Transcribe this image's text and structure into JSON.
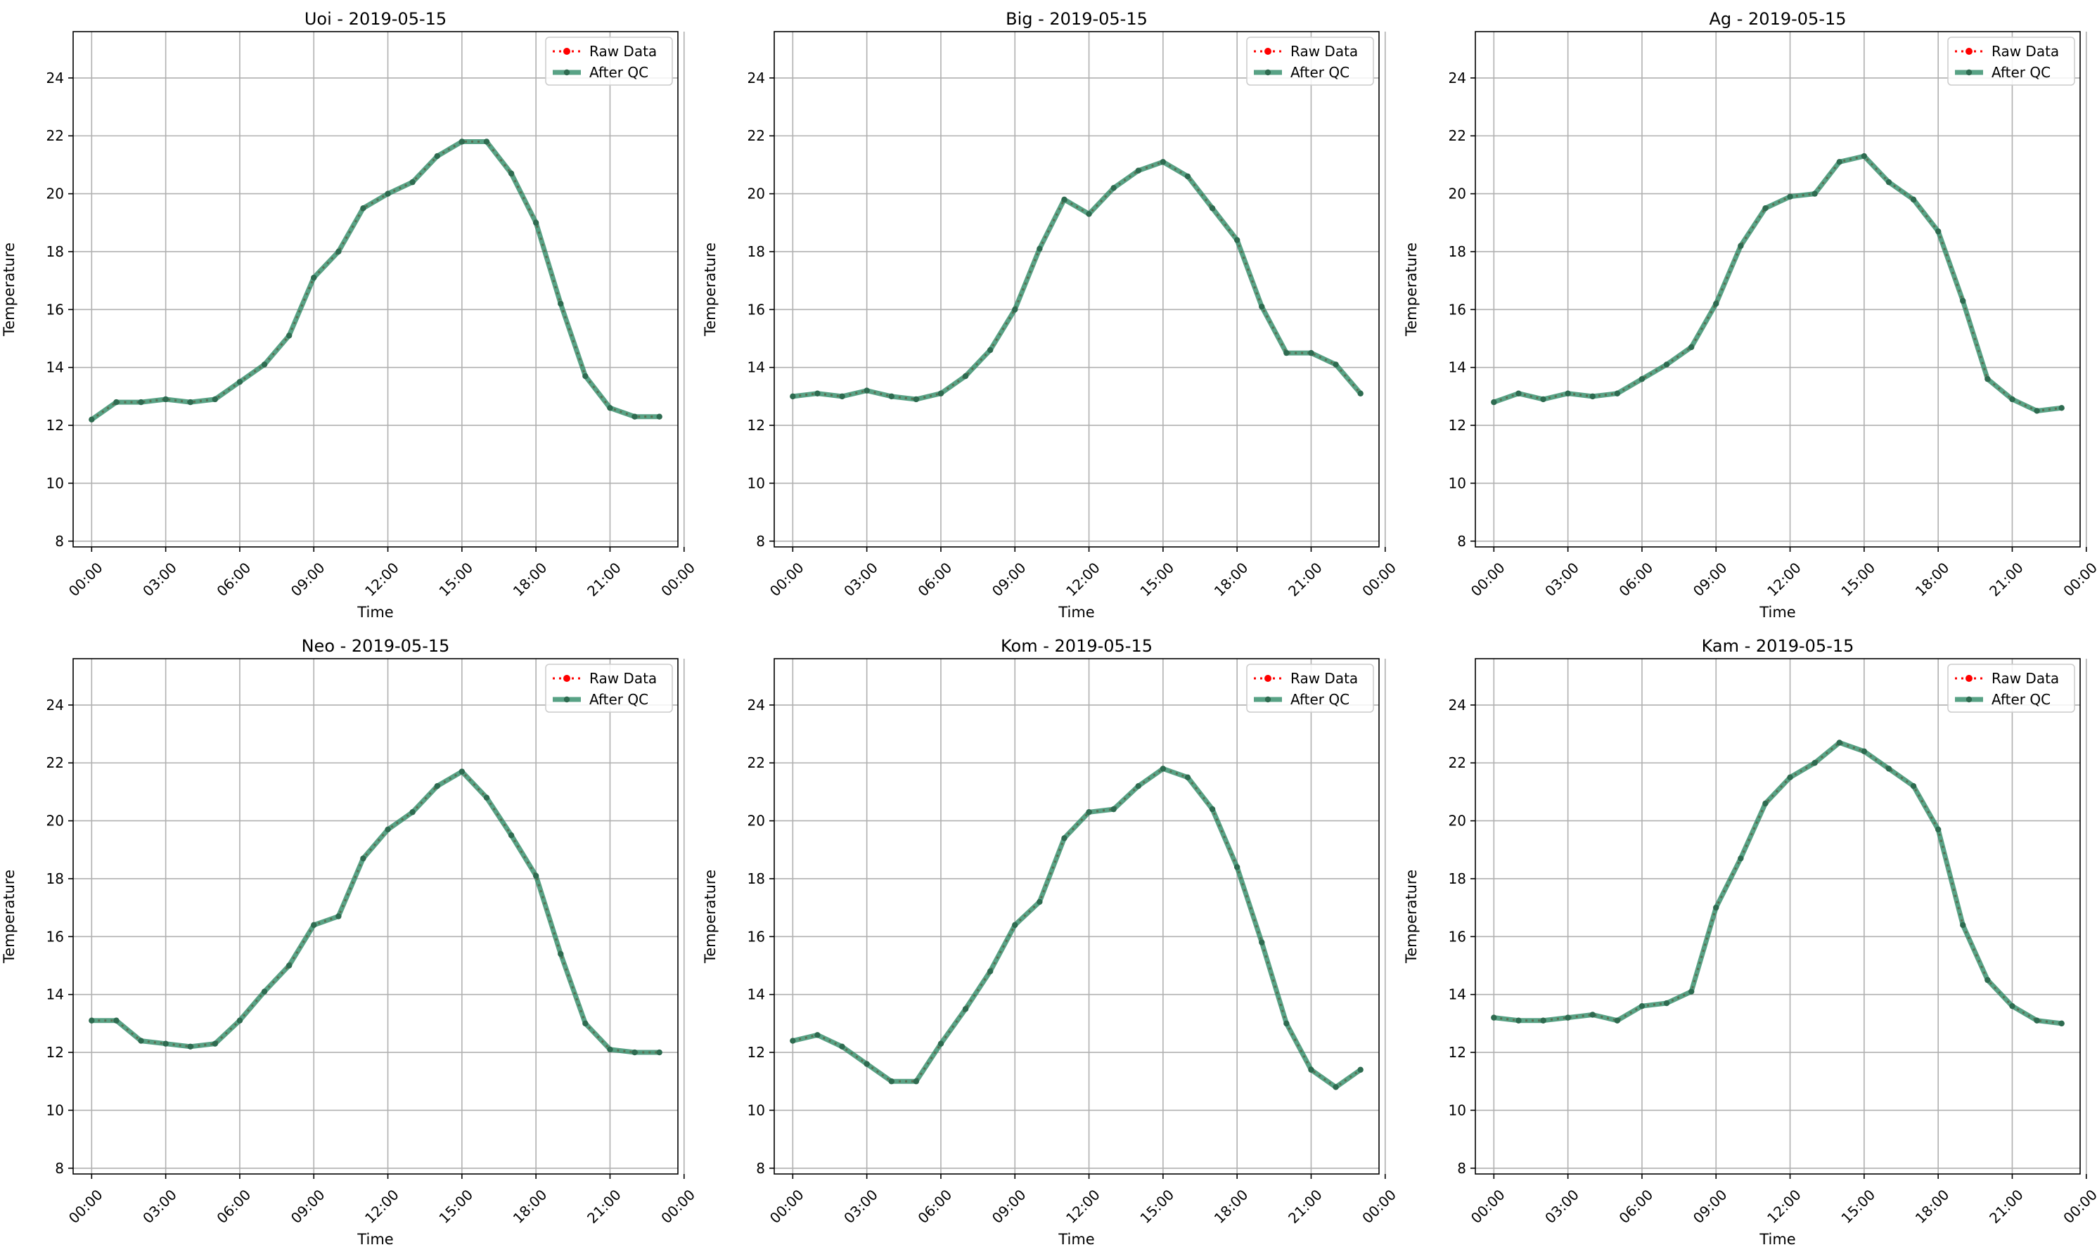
{
  "legend_labels": {
    "raw": "Raw Data",
    "qc": "After QC"
  },
  "colors": {
    "raw": "#ff0000",
    "qc": "#2e8b66",
    "marker": "#2e6b50",
    "grid": "#b0b0b0"
  },
  "chart_data": [
    {
      "type": "line",
      "title": "Uoi - 2019-05-15",
      "xlabel": "Time",
      "ylabel": "Temperature",
      "ylim": [
        7.8,
        25.6
      ],
      "xlim": [
        -0.75,
        23.75
      ],
      "xticks": [
        0,
        3,
        6,
        9,
        12,
        15,
        18,
        21,
        24
      ],
      "xtick_labels": [
        "00:00",
        "03:00",
        "06:00",
        "09:00",
        "12:00",
        "15:00",
        "18:00",
        "21:00",
        "00:00"
      ],
      "yticks": [
        8,
        10,
        12,
        14,
        16,
        18,
        20,
        22,
        24
      ],
      "grid": true,
      "legend": "top-right",
      "x": [
        0,
        1,
        2,
        3,
        4,
        5,
        6,
        7,
        8,
        9,
        10,
        11,
        12,
        13,
        14,
        15,
        16,
        17,
        18,
        19,
        20,
        21,
        22,
        23
      ],
      "series": [
        {
          "name": "Raw Data",
          "values": [
            12.2,
            12.8,
            12.8,
            12.9,
            12.8,
            12.9,
            13.5,
            14.1,
            15.1,
            17.1,
            18.0,
            19.5,
            20.0,
            20.4,
            21.3,
            21.8,
            21.8,
            20.7,
            19.0,
            16.2,
            13.7,
            12.6,
            12.3,
            12.3
          ]
        },
        {
          "name": "After QC",
          "values": [
            12.2,
            12.8,
            12.8,
            12.9,
            12.8,
            12.9,
            13.5,
            14.1,
            15.1,
            17.1,
            18.0,
            19.5,
            20.0,
            20.4,
            21.3,
            21.8,
            21.8,
            20.7,
            19.0,
            16.2,
            13.7,
            12.6,
            12.3,
            12.3
          ]
        }
      ]
    },
    {
      "type": "line",
      "title": "Big - 2019-05-15",
      "xlabel": "Time",
      "ylabel": "Temperature",
      "ylim": [
        7.8,
        25.6
      ],
      "xlim": [
        -0.75,
        23.75
      ],
      "xticks": [
        0,
        3,
        6,
        9,
        12,
        15,
        18,
        21,
        24
      ],
      "xtick_labels": [
        "00:00",
        "03:00",
        "06:00",
        "09:00",
        "12:00",
        "15:00",
        "18:00",
        "21:00",
        "00:00"
      ],
      "yticks": [
        8,
        10,
        12,
        14,
        16,
        18,
        20,
        22,
        24
      ],
      "grid": true,
      "legend": "top-right",
      "x": [
        0,
        1,
        2,
        3,
        4,
        5,
        6,
        7,
        8,
        9,
        10,
        11,
        12,
        13,
        14,
        15,
        16,
        17,
        18,
        19,
        20,
        21,
        22,
        23
      ],
      "series": [
        {
          "name": "Raw Data",
          "values": [
            13.0,
            13.1,
            13.0,
            13.2,
            13.0,
            12.9,
            13.1,
            13.7,
            14.6,
            16.0,
            18.1,
            19.8,
            19.3,
            20.2,
            20.8,
            21.1,
            20.6,
            19.5,
            18.4,
            16.1,
            14.5,
            14.5,
            14.1,
            13.1
          ]
        },
        {
          "name": "After QC",
          "values": [
            13.0,
            13.1,
            13.0,
            13.2,
            13.0,
            12.9,
            13.1,
            13.7,
            14.6,
            16.0,
            18.1,
            19.8,
            19.3,
            20.2,
            20.8,
            21.1,
            20.6,
            19.5,
            18.4,
            16.1,
            14.5,
            14.5,
            14.1,
            13.1
          ]
        }
      ]
    },
    {
      "type": "line",
      "title": "Ag - 2019-05-15",
      "xlabel": "Time",
      "ylabel": "Temperature",
      "ylim": [
        7.8,
        25.6
      ],
      "xlim": [
        -0.75,
        23.75
      ],
      "xticks": [
        0,
        3,
        6,
        9,
        12,
        15,
        18,
        21,
        24
      ],
      "xtick_labels": [
        "00:00",
        "03:00",
        "06:00",
        "09:00",
        "12:00",
        "15:00",
        "18:00",
        "21:00",
        "00:00"
      ],
      "yticks": [
        8,
        10,
        12,
        14,
        16,
        18,
        20,
        22,
        24
      ],
      "grid": true,
      "legend": "top-right",
      "x": [
        0,
        1,
        2,
        3,
        4,
        5,
        6,
        7,
        8,
        9,
        10,
        11,
        12,
        13,
        14,
        15,
        16,
        17,
        18,
        19,
        20,
        21,
        22,
        23
      ],
      "series": [
        {
          "name": "Raw Data",
          "values": [
            12.8,
            13.1,
            12.9,
            13.1,
            13.0,
            13.1,
            13.6,
            14.1,
            14.7,
            16.2,
            18.2,
            19.5,
            19.9,
            20.0,
            21.1,
            21.3,
            20.4,
            19.8,
            18.7,
            16.3,
            13.6,
            12.9,
            12.5,
            12.6
          ]
        },
        {
          "name": "After QC",
          "values": [
            12.8,
            13.1,
            12.9,
            13.1,
            13.0,
            13.1,
            13.6,
            14.1,
            14.7,
            16.2,
            18.2,
            19.5,
            19.9,
            20.0,
            21.1,
            21.3,
            20.4,
            19.8,
            18.7,
            16.3,
            13.6,
            12.9,
            12.5,
            12.6
          ]
        }
      ]
    },
    {
      "type": "line",
      "title": "Neo - 2019-05-15",
      "xlabel": "Time",
      "ylabel": "Temperature",
      "ylim": [
        7.8,
        25.6
      ],
      "xlim": [
        -0.75,
        23.75
      ],
      "xticks": [
        0,
        3,
        6,
        9,
        12,
        15,
        18,
        21,
        24
      ],
      "xtick_labels": [
        "00:00",
        "03:00",
        "06:00",
        "09:00",
        "12:00",
        "15:00",
        "18:00",
        "21:00",
        "00:00"
      ],
      "yticks": [
        8,
        10,
        12,
        14,
        16,
        18,
        20,
        22,
        24
      ],
      "grid": true,
      "legend": "top-right",
      "x": [
        0,
        1,
        2,
        3,
        4,
        5,
        6,
        7,
        8,
        9,
        10,
        11,
        12,
        13,
        14,
        15,
        16,
        17,
        18,
        19,
        20,
        21,
        22,
        23
      ],
      "series": [
        {
          "name": "Raw Data",
          "values": [
            13.1,
            13.1,
            12.4,
            12.3,
            12.2,
            12.3,
            13.1,
            14.1,
            15.0,
            16.4,
            16.7,
            18.7,
            19.7,
            20.3,
            21.2,
            21.7,
            20.8,
            19.5,
            18.1,
            15.4,
            13.0,
            12.1,
            12.0,
            12.0
          ]
        },
        {
          "name": "After QC",
          "values": [
            13.1,
            13.1,
            12.4,
            12.3,
            12.2,
            12.3,
            13.1,
            14.1,
            15.0,
            16.4,
            16.7,
            18.7,
            19.7,
            20.3,
            21.2,
            21.7,
            20.8,
            19.5,
            18.1,
            15.4,
            13.0,
            12.1,
            12.0,
            12.0
          ]
        }
      ]
    },
    {
      "type": "line",
      "title": "Kom - 2019-05-15",
      "xlabel": "Time",
      "ylabel": "Temperature",
      "ylim": [
        7.8,
        25.6
      ],
      "xlim": [
        -0.75,
        23.75
      ],
      "xticks": [
        0,
        3,
        6,
        9,
        12,
        15,
        18,
        21,
        24
      ],
      "xtick_labels": [
        "00:00",
        "03:00",
        "06:00",
        "09:00",
        "12:00",
        "15:00",
        "18:00",
        "21:00",
        "00:00"
      ],
      "yticks": [
        8,
        10,
        12,
        14,
        16,
        18,
        20,
        22,
        24
      ],
      "grid": true,
      "legend": "top-right",
      "x": [
        0,
        1,
        2,
        3,
        4,
        5,
        6,
        7,
        8,
        9,
        10,
        11,
        12,
        13,
        14,
        15,
        16,
        17,
        18,
        19,
        20,
        21,
        22,
        23
      ],
      "series": [
        {
          "name": "Raw Data",
          "values": [
            12.4,
            12.6,
            12.2,
            11.6,
            11.0,
            11.0,
            12.3,
            13.5,
            14.8,
            16.4,
            17.2,
            19.4,
            20.3,
            20.4,
            21.2,
            21.8,
            21.5,
            20.4,
            18.4,
            15.8,
            13.0,
            11.4,
            10.8,
            11.4
          ]
        },
        {
          "name": "After QC",
          "values": [
            12.4,
            12.6,
            12.2,
            11.6,
            11.0,
            11.0,
            12.3,
            13.5,
            14.8,
            16.4,
            17.2,
            19.4,
            20.3,
            20.4,
            21.2,
            21.8,
            21.5,
            20.4,
            18.4,
            15.8,
            13.0,
            11.4,
            10.8,
            11.4
          ]
        }
      ]
    },
    {
      "type": "line",
      "title": "Kam - 2019-05-15",
      "xlabel": "Time",
      "ylabel": "Temperature",
      "ylim": [
        7.8,
        25.6
      ],
      "xlim": [
        -0.75,
        23.75
      ],
      "xticks": [
        0,
        3,
        6,
        9,
        12,
        15,
        18,
        21,
        24
      ],
      "xtick_labels": [
        "00:00",
        "03:00",
        "06:00",
        "09:00",
        "12:00",
        "15:00",
        "18:00",
        "21:00",
        "00:00"
      ],
      "yticks": [
        8,
        10,
        12,
        14,
        16,
        18,
        20,
        22,
        24
      ],
      "grid": true,
      "legend": "top-right",
      "x": [
        0,
        1,
        2,
        3,
        4,
        5,
        6,
        7,
        8,
        9,
        10,
        11,
        12,
        13,
        14,
        15,
        16,
        17,
        18,
        19,
        20,
        21,
        22,
        23
      ],
      "series": [
        {
          "name": "Raw Data",
          "values": [
            13.2,
            13.1,
            13.1,
            13.2,
            13.3,
            13.1,
            13.6,
            13.7,
            14.1,
            17.0,
            18.7,
            20.6,
            21.5,
            22.0,
            22.7,
            22.4,
            21.8,
            21.2,
            19.7,
            16.4,
            14.5,
            13.6,
            13.1,
            13.0
          ]
        },
        {
          "name": "After QC",
          "values": [
            13.2,
            13.1,
            13.1,
            13.2,
            13.3,
            13.1,
            13.6,
            13.7,
            14.1,
            17.0,
            18.7,
            20.6,
            21.5,
            22.0,
            22.7,
            22.4,
            21.8,
            21.2,
            19.7,
            16.4,
            14.5,
            13.6,
            13.1,
            13.0
          ]
        }
      ]
    }
  ]
}
